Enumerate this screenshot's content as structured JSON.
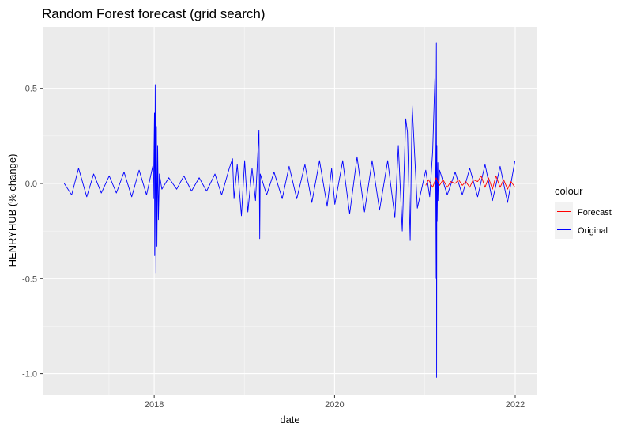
{
  "chart_data": {
    "type": "line",
    "title": "Random Forest forecast (grid search)",
    "xlabel": "date",
    "ylabel": "HENRYHUB (% change)",
    "x_range": [
      "2017-01-01",
      "2022-01-01"
    ],
    "ylim": [
      -1.0,
      0.75
    ],
    "x_ticks": [
      {
        "value": "2018-01-01",
        "label": "2018"
      },
      {
        "value": "2020-01-01",
        "label": "2020"
      },
      {
        "value": "2022-01-01",
        "label": "2022"
      }
    ],
    "y_ticks": [
      {
        "value": 0.5,
        "label": "0.5"
      },
      {
        "value": 0.0,
        "label": "0.0"
      },
      {
        "value": -0.5,
        "label": "-0.5"
      },
      {
        "value": -1.0,
        "label": "-1.0"
      }
    ],
    "grid": true,
    "panel_background": "#ebebeb",
    "grid_color": "#ffffff",
    "legend": {
      "title": "colour",
      "position": "right",
      "entries": [
        {
          "name": "Forecast",
          "color": "#ff0000"
        },
        {
          "name": "Original",
          "color": "#0000ff"
        }
      ]
    },
    "series": [
      {
        "name": "Original",
        "color": "#0000ff",
        "x": [
          "2017-01-02",
          "2017-02-01",
          "2017-03-01",
          "2017-04-03",
          "2017-05-01",
          "2017-06-01",
          "2017-07-03",
          "2017-08-01",
          "2017-09-01",
          "2017-10-02",
          "2017-11-01",
          "2017-12-01",
          "2017-12-26",
          "2017-12-29",
          "2018-01-02",
          "2018-01-03",
          "2018-01-05",
          "2018-01-08",
          "2018-01-10",
          "2018-01-12",
          "2018-01-15",
          "2018-01-18",
          "2018-01-22",
          "2018-02-01",
          "2018-03-01",
          "2018-04-02",
          "2018-05-01",
          "2018-06-01",
          "2018-07-02",
          "2018-08-01",
          "2018-09-04",
          "2018-10-01",
          "2018-11-01",
          "2018-11-14",
          "2018-11-20",
          "2018-12-03",
          "2018-12-20",
          "2019-01-02",
          "2019-01-15",
          "2019-02-01",
          "2019-02-15",
          "2019-03-01",
          "2019-03-04",
          "2019-03-06",
          "2019-04-01",
          "2019-05-01",
          "2019-06-03",
          "2019-07-01",
          "2019-08-01",
          "2019-09-03",
          "2019-10-01",
          "2019-11-01",
          "2019-12-02",
          "2019-12-20",
          "2020-01-02",
          "2020-02-03",
          "2020-03-02",
          "2020-04-01",
          "2020-05-01",
          "2020-06-01",
          "2020-07-01",
          "2020-08-03",
          "2020-09-01",
          "2020-09-15",
          "2020-10-01",
          "2020-10-15",
          "2020-10-22",
          "2020-11-02",
          "2020-11-10",
          "2020-12-01",
          "2021-01-04",
          "2021-01-20",
          "2021-02-01",
          "2021-02-10",
          "2021-02-12",
          "2021-02-16",
          "2021-02-17",
          "2021-02-18",
          "2021-02-19",
          "2021-02-22",
          "2021-02-24",
          "2021-03-01",
          "2021-04-01",
          "2021-05-03",
          "2021-06-01",
          "2021-07-01",
          "2021-08-02",
          "2021-09-01",
          "2021-10-01",
          "2021-11-01",
          "2021-12-01",
          "2021-12-31"
        ],
        "values": [
          0.0,
          -0.06,
          0.08,
          -0.07,
          0.05,
          -0.05,
          0.04,
          -0.05,
          0.06,
          -0.07,
          0.07,
          -0.06,
          0.09,
          -0.08,
          0.37,
          -0.38,
          0.52,
          -0.47,
          0.3,
          -0.33,
          0.2,
          -0.19,
          0.05,
          -0.03,
          0.03,
          -0.03,
          0.04,
          -0.04,
          0.03,
          -0.04,
          0.05,
          -0.06,
          0.08,
          0.13,
          -0.08,
          0.1,
          -0.17,
          0.12,
          -0.15,
          0.08,
          -0.09,
          0.28,
          -0.29,
          0.05,
          -0.06,
          0.06,
          -0.08,
          0.09,
          -0.08,
          0.1,
          -0.1,
          0.12,
          -0.12,
          0.08,
          -0.11,
          0.12,
          -0.16,
          0.14,
          -0.15,
          0.12,
          -0.14,
          0.12,
          -0.18,
          0.2,
          -0.25,
          0.34,
          0.27,
          -0.3,
          0.41,
          -0.13,
          0.07,
          -0.07,
          0.17,
          0.55,
          -0.5,
          0.74,
          -1.02,
          0.2,
          -0.2,
          0.11,
          -0.09,
          0.07,
          -0.06,
          0.06,
          -0.06,
          0.08,
          -0.07,
          0.1,
          -0.09,
          0.09,
          -0.1,
          0.12
        ]
      },
      {
        "name": "Forecast",
        "color": "#ff0000",
        "x": [
          "2021-01-04",
          "2021-01-15",
          "2021-02-01",
          "2021-02-15",
          "2021-03-01",
          "2021-03-15",
          "2021-04-01",
          "2021-04-15",
          "2021-05-03",
          "2021-05-17",
          "2021-06-01",
          "2021-06-15",
          "2021-07-01",
          "2021-07-15",
          "2021-08-02",
          "2021-08-16",
          "2021-09-01",
          "2021-09-15",
          "2021-10-01",
          "2021-10-15",
          "2021-11-01",
          "2021-11-15",
          "2021-12-01",
          "2021-12-15",
          "2021-12-31"
        ],
        "values": [
          -0.01,
          0.02,
          -0.02,
          0.03,
          -0.01,
          0.02,
          -0.02,
          0.01,
          0.0,
          0.02,
          -0.01,
          0.01,
          -0.02,
          0.02,
          0.01,
          0.04,
          -0.02,
          0.03,
          -0.03,
          0.04,
          -0.02,
          0.02,
          -0.03,
          0.01,
          -0.02
        ]
      }
    ]
  }
}
